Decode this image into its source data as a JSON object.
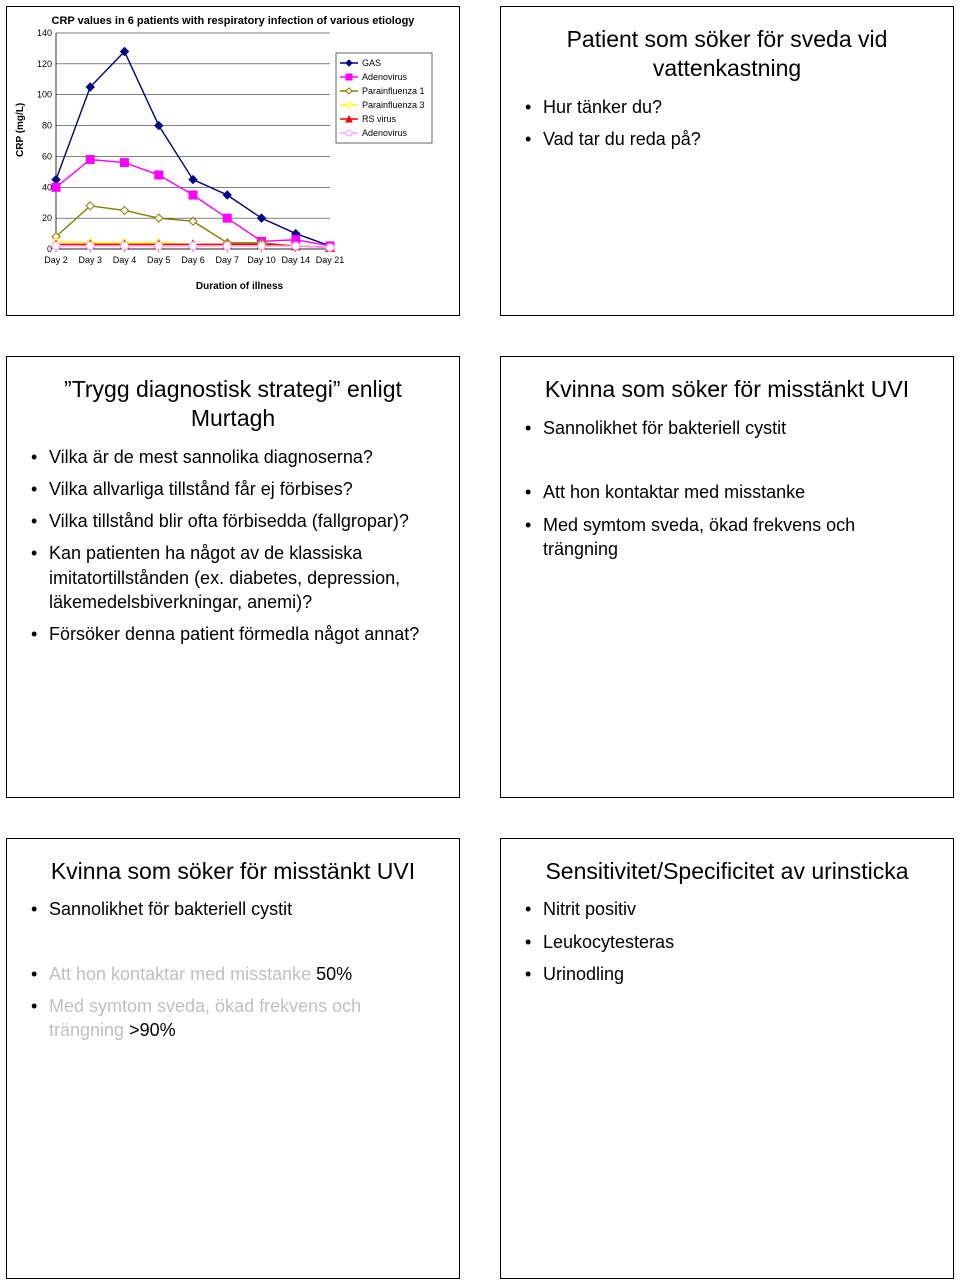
{
  "chart": {
    "type": "line",
    "title": "CRP values in 6 patients with respiratory infection of various etiology",
    "ylabel": "CRP (mg/L)",
    "xlabel": "Duration of illness",
    "ylim": [
      0,
      140
    ],
    "ytick_step": 20,
    "yticks": [
      0,
      20,
      40,
      60,
      80,
      100,
      120,
      140
    ],
    "categories": [
      "Day 2",
      "Day 3",
      "Day 4",
      "Day 5",
      "Day 6",
      "Day 7",
      "Day 10",
      "Day 14",
      "Day 21"
    ],
    "background_color": "#ffffff",
    "grid_color": "#000000",
    "axis_fontsize": 10,
    "title_fontsize": 11,
    "tick_fontsize": 9,
    "legend_border": "#000000",
    "legend_fontsize": 9,
    "marker_size": 4,
    "line_width": 1.4,
    "series": [
      {
        "name": "GAS",
        "color": "#000080",
        "marker": "diamond-filled",
        "values": [
          45,
          105,
          128,
          80,
          45,
          35,
          20,
          10,
          2
        ]
      },
      {
        "name": "Adenovirus",
        "color": "#ff00ff",
        "marker": "square-filled",
        "values": [
          40,
          58,
          56,
          48,
          35,
          20,
          5,
          6,
          2
        ]
      },
      {
        "name": "Parainfluenza 1",
        "color": "#808000",
        "marker": "diamond-open",
        "values": [
          8,
          28,
          25,
          20,
          18,
          4,
          4,
          2,
          1
        ]
      },
      {
        "name": "Parainfluenza 3",
        "color": "#ffff00",
        "marker": "diamond-open",
        "values": [
          5,
          4,
          4,
          4,
          3,
          3,
          3,
          2,
          1
        ]
      },
      {
        "name": "RS virus",
        "color": "#ff0000",
        "marker": "triangle-filled",
        "values": [
          3,
          3,
          3,
          3,
          3,
          3,
          3,
          2,
          1
        ]
      },
      {
        "name": "Adenovirus",
        "color": "#ff99ff",
        "marker": "circle-open",
        "values": [
          2,
          2,
          2,
          2,
          2,
          2,
          2,
          2,
          1
        ]
      }
    ]
  },
  "slide_top_right": {
    "title": "Patient som söker för sveda vid vattenkastning",
    "bullets": [
      "Hur tänker du?",
      "Vad tar du reda på?"
    ]
  },
  "slide_mid_left": {
    "title": "”Trygg diagnostisk strategi” enligt Murtagh",
    "bullets": [
      "Vilka är de mest sannolika diagnoserna?",
      "Vilka allvarliga tillstånd får ej förbises?",
      "Vilka tillstånd blir ofta förbisedda (fallgropar)?",
      "Kan patienten ha något av de klassiska imitatortillstånden (ex. diabetes, depression, läkemedelsbiverkningar, anemi)?",
      "Försöker denna patient förmedla något annat?"
    ]
  },
  "slide_mid_right": {
    "title": "Kvinna som söker för misstänkt UVI",
    "bullets": [
      "Sannolikhet för bakteriell cystit",
      "",
      "Att hon kontaktar med misstanke",
      "Med symtom sveda, ökad frekvens och trängning"
    ]
  },
  "slide_bot_left": {
    "title": "Kvinna som söker för misstänkt UVI",
    "bullets_html": [
      {
        "text": "Sannolikhet för bakteriell cystit",
        "faded": false
      },
      {
        "text": "",
        "faded": false
      },
      {
        "prefix": "Att hon kontaktar med misstanke ",
        "suffix": "50%",
        "faded_partial": true
      },
      {
        "prefix": "Med symtom sveda, ökad frekvens och trängning ",
        "suffix": ">90%",
        "faded_partial": true
      }
    ]
  },
  "slide_bot_right": {
    "title": "Sensitivitet/Specificitet av urinsticka",
    "bullets": [
      "Nitrit positiv",
      "Leukocytesteras",
      "Urinodling"
    ]
  }
}
